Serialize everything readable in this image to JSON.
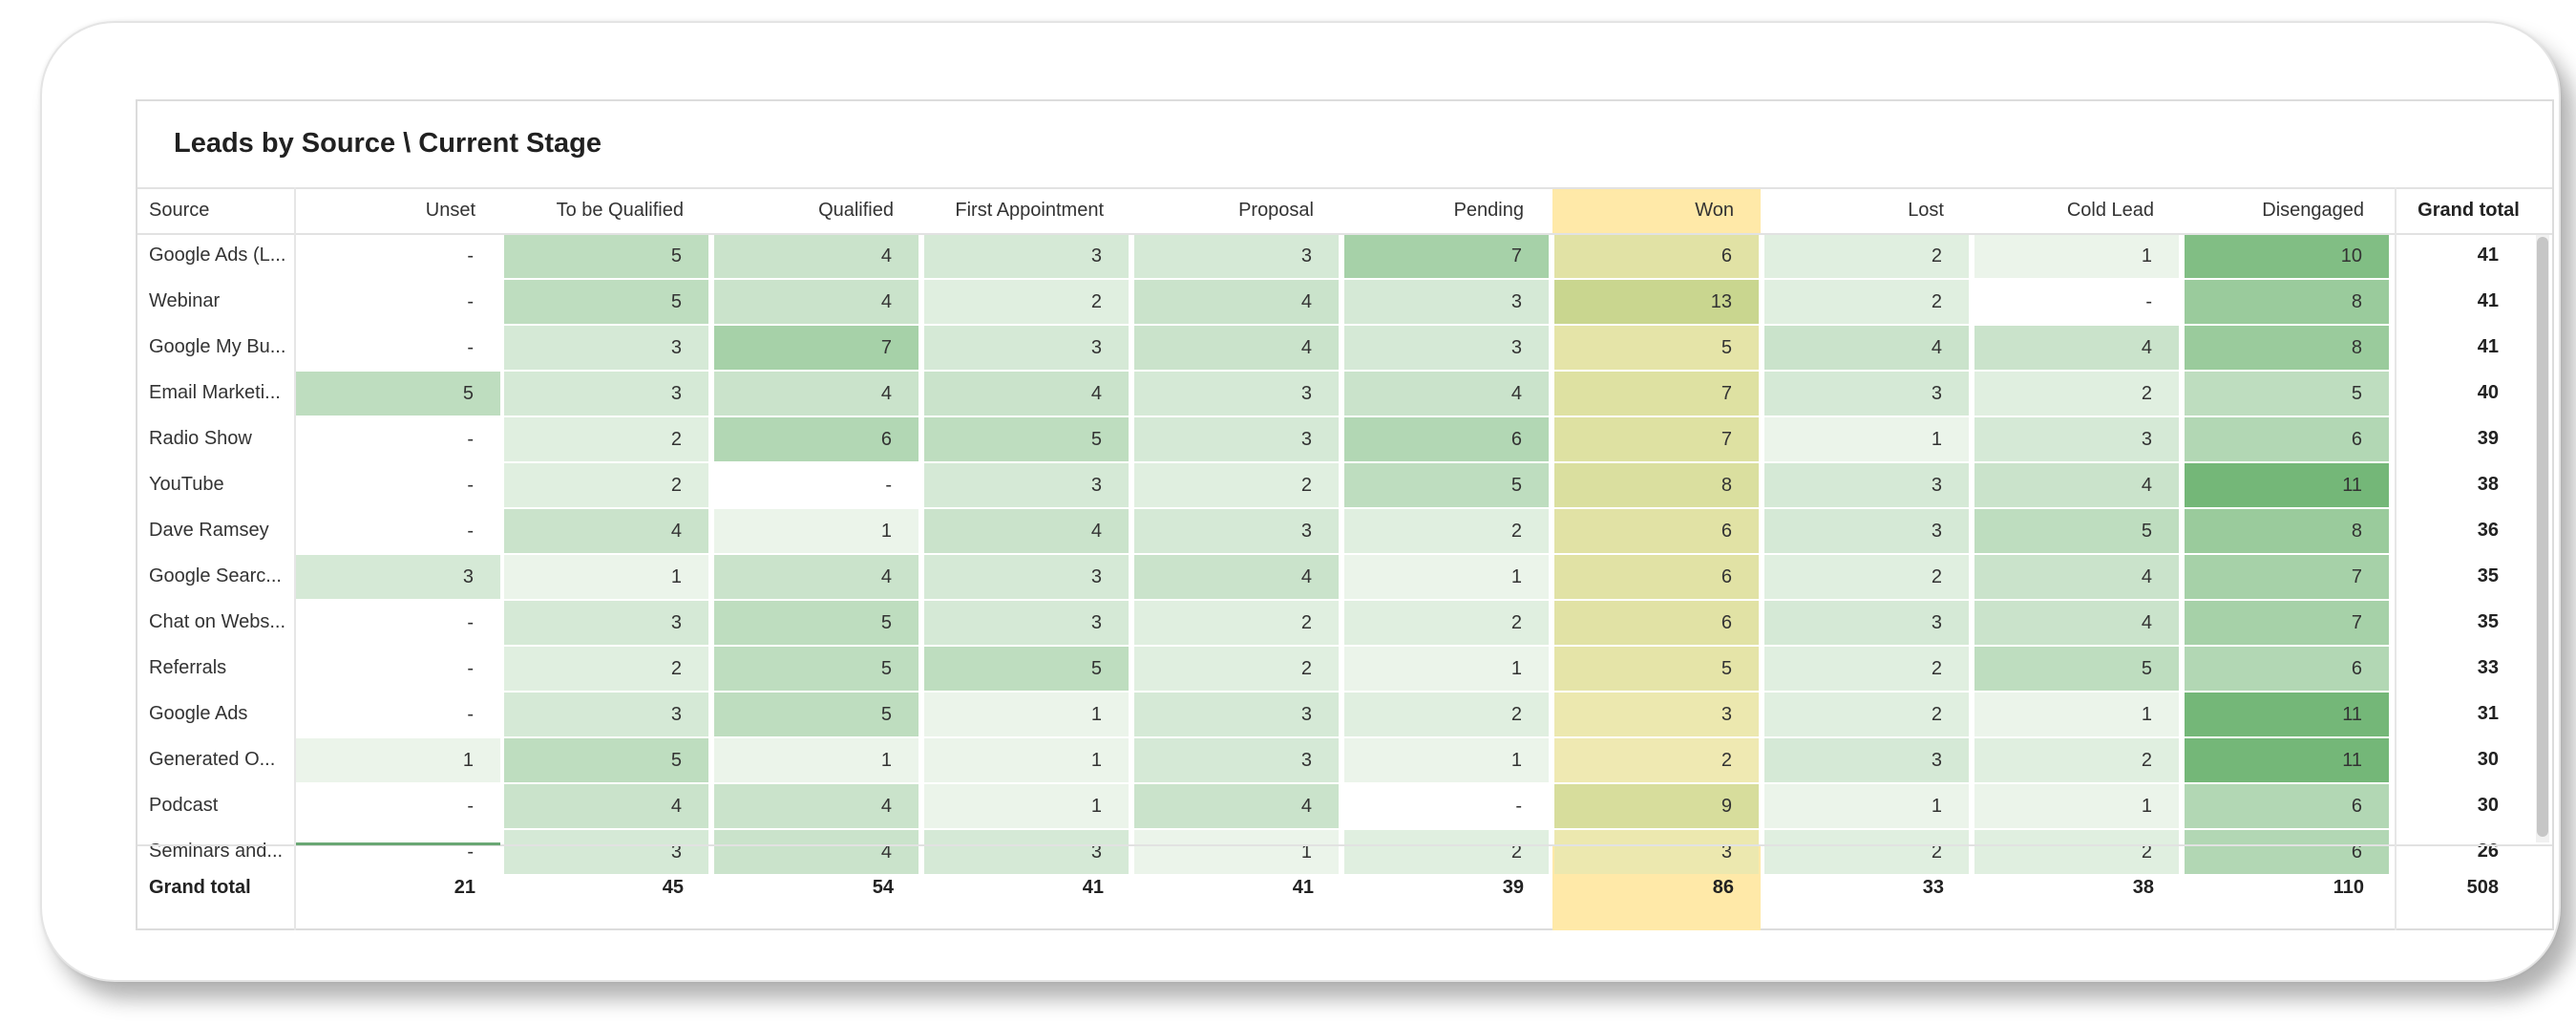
{
  "title": "Leads by Source \\ Current Stage",
  "columns": [
    "Source",
    "Unset",
    "To be Qualified",
    "Qualified",
    "First Appointment",
    "Proposal",
    "Pending",
    "Won",
    "Lost",
    "Cold Lead",
    "Disengaged",
    "Grand total"
  ],
  "rows": [
    {
      "source": "Google Ads (L...",
      "values": [
        "-",
        "5",
        "4",
        "3",
        "3",
        "7",
        "6",
        "2",
        "1",
        "10"
      ],
      "total": "41"
    },
    {
      "source": "Webinar",
      "values": [
        "-",
        "5",
        "4",
        "2",
        "4",
        "3",
        "13",
        "2",
        "-",
        "8"
      ],
      "total": "41"
    },
    {
      "source": "Google My Bu...",
      "values": [
        "-",
        "3",
        "7",
        "3",
        "4",
        "3",
        "5",
        "4",
        "4",
        "8"
      ],
      "total": "41"
    },
    {
      "source": "Email Marketi...",
      "values": [
        "5",
        "3",
        "4",
        "4",
        "3",
        "4",
        "7",
        "3",
        "2",
        "5"
      ],
      "total": "40"
    },
    {
      "source": "Radio Show",
      "values": [
        "-",
        "2",
        "6",
        "5",
        "3",
        "6",
        "7",
        "1",
        "3",
        "6"
      ],
      "total": "39"
    },
    {
      "source": "YouTube",
      "values": [
        "-",
        "2",
        "-",
        "3",
        "2",
        "5",
        "8",
        "3",
        "4",
        "11"
      ],
      "total": "38"
    },
    {
      "source": "Dave Ramsey",
      "values": [
        "-",
        "4",
        "1",
        "4",
        "3",
        "2",
        "6",
        "3",
        "5",
        "8"
      ],
      "total": "36"
    },
    {
      "source": "Google Searc...",
      "values": [
        "3",
        "1",
        "4",
        "3",
        "4",
        "1",
        "6",
        "2",
        "4",
        "7"
      ],
      "total": "35"
    },
    {
      "source": "Chat on Webs...",
      "values": [
        "-",
        "3",
        "5",
        "3",
        "2",
        "2",
        "6",
        "3",
        "4",
        "7"
      ],
      "total": "35"
    },
    {
      "source": "Referrals",
      "values": [
        "-",
        "2",
        "5",
        "5",
        "2",
        "1",
        "5",
        "2",
        "5",
        "6"
      ],
      "total": "33"
    },
    {
      "source": "Google Ads",
      "values": [
        "-",
        "3",
        "5",
        "1",
        "3",
        "2",
        "3",
        "2",
        "1",
        "11"
      ],
      "total": "31"
    },
    {
      "source": "Generated O...",
      "values": [
        "1",
        "5",
        "1",
        "1",
        "3",
        "1",
        "2",
        "3",
        "2",
        "11"
      ],
      "total": "30"
    },
    {
      "source": "Podcast",
      "values": [
        "-",
        "4",
        "4",
        "1",
        "4",
        "-",
        "9",
        "1",
        "1",
        "6"
      ],
      "total": "30"
    },
    {
      "source": "Seminars and...",
      "values": [
        "-",
        "3",
        "4",
        "3",
        "1",
        "2",
        "3",
        "2",
        "2",
        "6"
      ],
      "total": "26"
    }
  ],
  "grand_total_row": {
    "label": "Grand total",
    "values": [
      "21",
      "45",
      "54",
      "41",
      "41",
      "39",
      "86",
      "33",
      "38",
      "110"
    ],
    "total": "508"
  },
  "highlighted_column": "Won",
  "colors": {
    "heat_low": "#f4f9f3",
    "heat_high": "#5aaa5f",
    "won_column_header": "#ffe9a8",
    "won_tint_low": "#f6edb8",
    "won_tint_high": "#c9d68f",
    "grid": "#e6e6e6"
  }
}
